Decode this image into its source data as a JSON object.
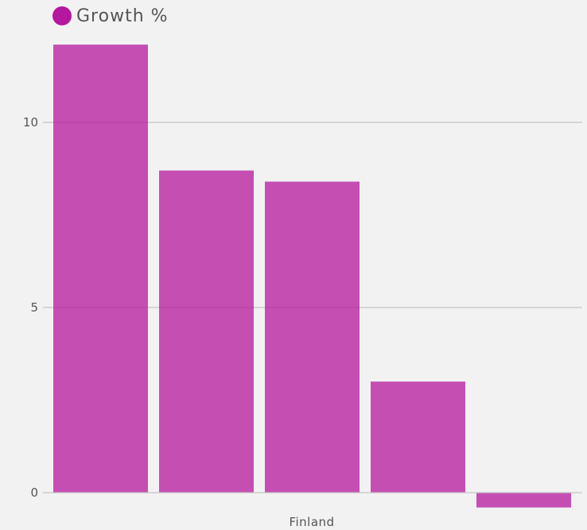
{
  "chart_data": {
    "type": "bar",
    "series": [
      {
        "name": "Growth %",
        "color": "#b5179e",
        "values": [
          12.1,
          8.7,
          8.4,
          3.0,
          -0.4
        ]
      }
    ],
    "xlabel": "Finland",
    "ylim": [
      0,
      12.1
    ],
    "yticks": [
      0,
      5,
      10
    ],
    "grid": true,
    "legend_position": "top-left"
  }
}
